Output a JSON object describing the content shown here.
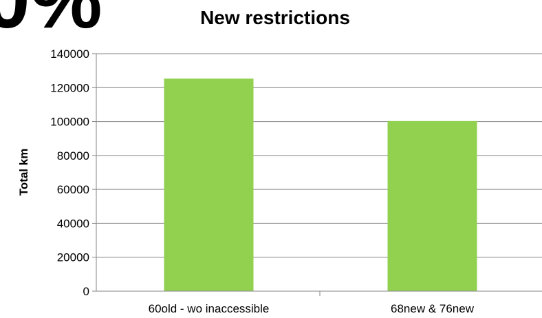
{
  "overlay_text": "0%",
  "chart_data": {
    "type": "bar",
    "title": "New restrictions",
    "xlabel": "",
    "ylabel": "Total km",
    "categories": [
      "60old - wo inaccessible",
      "68new & 76new"
    ],
    "values": [
      125300,
      100300
    ],
    "ylim": [
      0,
      140000
    ],
    "yticks": [
      "0",
      "20000",
      "40000",
      "60000",
      "80000",
      "100000",
      "120000",
      "140000"
    ],
    "grid": true,
    "legend": "none",
    "bar_color": "#92D050"
  }
}
